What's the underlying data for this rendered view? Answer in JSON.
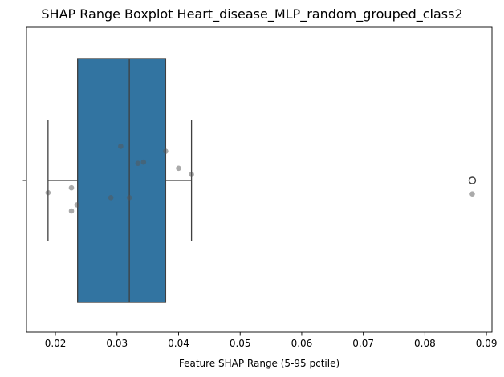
{
  "chart_data": {
    "type": "boxplot",
    "title": "SHAP Range Boxplot Heart_disease_MLP_random_grouped_class2",
    "xlabel": "Feature SHAP Range (5-95 pctile)",
    "ylabel": "",
    "xlim": [
      0.0153,
      0.0909
    ],
    "xticks": [
      0.02,
      0.03,
      0.04,
      0.05,
      0.06,
      0.07,
      0.08,
      0.09
    ],
    "xtick_labels": [
      "0.02",
      "0.03",
      "0.04",
      "0.05",
      "0.06",
      "0.07",
      "0.08",
      "0.09"
    ],
    "box": {
      "whisker_low": 0.0188,
      "q1": 0.0236,
      "median": 0.032,
      "q3": 0.0379,
      "whisker_high": 0.0421,
      "outliers": [
        0.0877
      ]
    },
    "points": [
      {
        "x": 0.0188,
        "jitter": 0.1
      },
      {
        "x": 0.0226,
        "jitter": 0.06
      },
      {
        "x": 0.0226,
        "jitter": 0.25
      },
      {
        "x": 0.0235,
        "jitter": 0.2
      },
      {
        "x": 0.029,
        "jitter": 0.14
      },
      {
        "x": 0.0306,
        "jitter": -0.28
      },
      {
        "x": 0.032,
        "jitter": 0.14
      },
      {
        "x": 0.0334,
        "jitter": -0.14
      },
      {
        "x": 0.0343,
        "jitter": -0.15
      },
      {
        "x": 0.0379,
        "jitter": -0.24
      },
      {
        "x": 0.04,
        "jitter": -0.1
      },
      {
        "x": 0.0421,
        "jitter": -0.05
      },
      {
        "x": 0.0877,
        "jitter": 0.11
      }
    ],
    "colors": {
      "box_fill": "#3274a1",
      "box_edge": "#3f3f3f",
      "point": "#555555"
    },
    "grid": false,
    "legend": "none"
  }
}
